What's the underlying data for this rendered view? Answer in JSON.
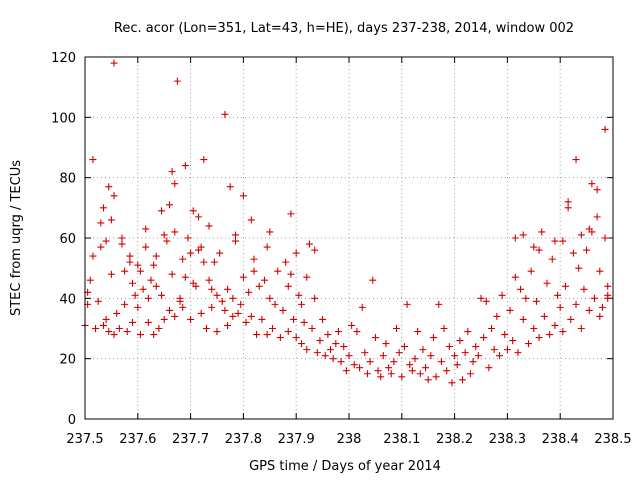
{
  "chart_data": {
    "type": "scatter",
    "title": "Rec. acor (Lon=351, Lat=43, h=HE), days 237-238, 2014, window 002",
    "xlabel": "GPS time / Days of year 2014",
    "ylabel": "STEC from uqrg / TECUs",
    "xlim": [
      237.5,
      238.5
    ],
    "ylim": [
      0,
      120
    ],
    "xticks": [
      "237.5",
      "237.6",
      "237.7",
      "237.8",
      "237.9",
      "238",
      "238.1",
      "238.2",
      "238.3",
      "238.4",
      "238.5"
    ],
    "yticks": [
      "0",
      "20",
      "40",
      "60",
      "80",
      "100",
      "120"
    ],
    "grid": true,
    "marker": "+",
    "marker_color": "#d40000",
    "points": [
      [
        237.5,
        31
      ],
      [
        237.505,
        38
      ],
      [
        237.505,
        42
      ],
      [
        237.51,
        46
      ],
      [
        237.515,
        54
      ],
      [
        237.515,
        86
      ],
      [
        237.52,
        30
      ],
      [
        237.525,
        39
      ],
      [
        237.53,
        57
      ],
      [
        237.53,
        65
      ],
      [
        237.535,
        70
      ],
      [
        237.535,
        31
      ],
      [
        237.54,
        59
      ],
      [
        237.54,
        33
      ],
      [
        237.545,
        77
      ],
      [
        237.545,
        29
      ],
      [
        237.55,
        48
      ],
      [
        237.55,
        66
      ],
      [
        237.555,
        74
      ],
      [
        237.555,
        118
      ],
      [
        237.555,
        28
      ],
      [
        237.56,
        35
      ],
      [
        237.565,
        30
      ],
      [
        237.57,
        60
      ],
      [
        237.57,
        58
      ],
      [
        237.575,
        38
      ],
      [
        237.575,
        49
      ],
      [
        237.58,
        29
      ],
      [
        237.585,
        54
      ],
      [
        237.585,
        52
      ],
      [
        237.59,
        45
      ],
      [
        237.59,
        32
      ],
      [
        237.595,
        41
      ],
      [
        237.6,
        51
      ],
      [
        237.6,
        37
      ],
      [
        237.605,
        49
      ],
      [
        237.605,
        28
      ],
      [
        237.61,
        43
      ],
      [
        237.615,
        57
      ],
      [
        237.615,
        63
      ],
      [
        237.62,
        40
      ],
      [
        237.62,
        32
      ],
      [
        237.625,
        46
      ],
      [
        237.63,
        28
      ],
      [
        237.63,
        51
      ],
      [
        237.635,
        54
      ],
      [
        237.635,
        44
      ],
      [
        237.64,
        30
      ],
      [
        237.645,
        69
      ],
      [
        237.645,
        41
      ],
      [
        237.65,
        61
      ],
      [
        237.65,
        33
      ],
      [
        237.655,
        59
      ],
      [
        237.66,
        36
      ],
      [
        237.66,
        71
      ],
      [
        237.665,
        48
      ],
      [
        237.665,
        82
      ],
      [
        237.67,
        78
      ],
      [
        237.67,
        62
      ],
      [
        237.67,
        34
      ],
      [
        237.675,
        112
      ],
      [
        237.68,
        40
      ],
      [
        237.68,
        39
      ],
      [
        237.685,
        53
      ],
      [
        237.685,
        37
      ],
      [
        237.69,
        84
      ],
      [
        237.69,
        47
      ],
      [
        237.695,
        60
      ],
      [
        237.7,
        55
      ],
      [
        237.7,
        33
      ],
      [
        237.705,
        69
      ],
      [
        237.705,
        45
      ],
      [
        237.71,
        44
      ],
      [
        237.715,
        67
      ],
      [
        237.715,
        56
      ],
      [
        237.72,
        57
      ],
      [
        237.72,
        35
      ],
      [
        237.725,
        52
      ],
      [
        237.725,
        86
      ],
      [
        237.73,
        30
      ],
      [
        237.735,
        64
      ],
      [
        237.735,
        46
      ],
      [
        237.74,
        43
      ],
      [
        237.74,
        37
      ],
      [
        237.745,
        52
      ],
      [
        237.75,
        41
      ],
      [
        237.75,
        29
      ],
      [
        237.755,
        55
      ],
      [
        237.76,
        39
      ],
      [
        237.765,
        101
      ],
      [
        237.765,
        36
      ],
      [
        237.77,
        43
      ],
      [
        237.77,
        31
      ],
      [
        237.775,
        77
      ],
      [
        237.78,
        34
      ],
      [
        237.78,
        40
      ],
      [
        237.785,
        61
      ],
      [
        237.785,
        59
      ],
      [
        237.79,
        35
      ],
      [
        237.795,
        38
      ],
      [
        237.8,
        47
      ],
      [
        237.8,
        74
      ],
      [
        237.805,
        32
      ],
      [
        237.81,
        42
      ],
      [
        237.815,
        66
      ],
      [
        237.815,
        34
      ],
      [
        237.82,
        53
      ],
      [
        237.82,
        49
      ],
      [
        237.825,
        28
      ],
      [
        237.83,
        44
      ],
      [
        237.835,
        33
      ],
      [
        237.84,
        46
      ],
      [
        237.845,
        57
      ],
      [
        237.845,
        28
      ],
      [
        237.85,
        62
      ],
      [
        237.85,
        40
      ],
      [
        237.855,
        30
      ],
      [
        237.86,
        38
      ],
      [
        237.865,
        49
      ],
      [
        237.87,
        27
      ],
      [
        237.875,
        36
      ],
      [
        237.88,
        52
      ],
      [
        237.885,
        29
      ],
      [
        237.885,
        44
      ],
      [
        237.89,
        68
      ],
      [
        237.89,
        48
      ],
      [
        237.895,
        33
      ],
      [
        237.9,
        27
      ],
      [
        237.9,
        55
      ],
      [
        237.905,
        41
      ],
      [
        237.91,
        38
      ],
      [
        237.91,
        25
      ],
      [
        237.915,
        32
      ],
      [
        237.92,
        47
      ],
      [
        237.92,
        23
      ],
      [
        237.925,
        58
      ],
      [
        237.93,
        30
      ],
      [
        237.935,
        56
      ],
      [
        237.935,
        40
      ],
      [
        237.94,
        22
      ],
      [
        237.945,
        26
      ],
      [
        237.95,
        33
      ],
      [
        237.955,
        21
      ],
      [
        237.96,
        28
      ],
      [
        237.965,
        23
      ],
      [
        237.97,
        20
      ],
      [
        237.975,
        25
      ],
      [
        237.98,
        29
      ],
      [
        237.985,
        19
      ],
      [
        237.99,
        24
      ],
      [
        237.995,
        16
      ],
      [
        238.0,
        21
      ],
      [
        238.005,
        31
      ],
      [
        238.01,
        18
      ],
      [
        238.015,
        29
      ],
      [
        238.02,
        17
      ],
      [
        238.025,
        37
      ],
      [
        238.03,
        22
      ],
      [
        238.035,
        15
      ],
      [
        238.04,
        19
      ],
      [
        238.045,
        46
      ],
      [
        238.05,
        27
      ],
      [
        238.055,
        16
      ],
      [
        238.06,
        14
      ],
      [
        238.065,
        21
      ],
      [
        238.07,
        25
      ],
      [
        238.075,
        17
      ],
      [
        238.08,
        15
      ],
      [
        238.085,
        19
      ],
      [
        238.09,
        30
      ],
      [
        238.095,
        22
      ],
      [
        238.1,
        14
      ],
      [
        238.105,
        24
      ],
      [
        238.11,
        38
      ],
      [
        238.115,
        18
      ],
      [
        238.12,
        16
      ],
      [
        238.125,
        20
      ],
      [
        238.13,
        29
      ],
      [
        238.135,
        15
      ],
      [
        238.14,
        23
      ],
      [
        238.145,
        17
      ],
      [
        238.15,
        13
      ],
      [
        238.155,
        21
      ],
      [
        238.16,
        27
      ],
      [
        238.165,
        14
      ],
      [
        238.17,
        38
      ],
      [
        238.175,
        19
      ],
      [
        238.18,
        30
      ],
      [
        238.185,
        16
      ],
      [
        238.19,
        24
      ],
      [
        238.195,
        12
      ],
      [
        238.2,
        21
      ],
      [
        238.205,
        18
      ],
      [
        238.21,
        26
      ],
      [
        238.215,
        13
      ],
      [
        238.22,
        22
      ],
      [
        238.225,
        29
      ],
      [
        238.23,
        15
      ],
      [
        238.235,
        19
      ],
      [
        238.24,
        24
      ],
      [
        238.245,
        21
      ],
      [
        238.25,
        40
      ],
      [
        238.255,
        27
      ],
      [
        238.26,
        39
      ],
      [
        238.265,
        17
      ],
      [
        238.27,
        30
      ],
      [
        238.275,
        23
      ],
      [
        238.28,
        34
      ],
      [
        238.285,
        21
      ],
      [
        238.29,
        41
      ],
      [
        238.295,
        28
      ],
      [
        238.3,
        23
      ],
      [
        238.305,
        36
      ],
      [
        238.31,
        26
      ],
      [
        238.315,
        47
      ],
      [
        238.315,
        60
      ],
      [
        238.32,
        22
      ],
      [
        238.325,
        43
      ],
      [
        238.33,
        61
      ],
      [
        238.33,
        33
      ],
      [
        238.335,
        40
      ],
      [
        238.34,
        25
      ],
      [
        238.345,
        49
      ],
      [
        238.35,
        57
      ],
      [
        238.35,
        30
      ],
      [
        238.355,
        39
      ],
      [
        238.36,
        56
      ],
      [
        238.36,
        27
      ],
      [
        238.365,
        62
      ],
      [
        238.37,
        34
      ],
      [
        238.375,
        45
      ],
      [
        238.38,
        28
      ],
      [
        238.385,
        53
      ],
      [
        238.39,
        59
      ],
      [
        238.39,
        31
      ],
      [
        238.395,
        41
      ],
      [
        238.4,
        37
      ],
      [
        238.405,
        59
      ],
      [
        238.405,
        29
      ],
      [
        238.41,
        44
      ],
      [
        238.415,
        70
      ],
      [
        238.415,
        72
      ],
      [
        238.42,
        33
      ],
      [
        238.425,
        55
      ],
      [
        238.43,
        86
      ],
      [
        238.43,
        38
      ],
      [
        238.435,
        50
      ],
      [
        238.44,
        61
      ],
      [
        238.44,
        30
      ],
      [
        238.445,
        43
      ],
      [
        238.45,
        56
      ],
      [
        238.455,
        63
      ],
      [
        238.455,
        36
      ],
      [
        238.46,
        78
      ],
      [
        238.46,
        62
      ],
      [
        238.465,
        40
      ],
      [
        238.47,
        76
      ],
      [
        238.47,
        67
      ],
      [
        238.475,
        49
      ],
      [
        238.475,
        34
      ],
      [
        238.48,
        37
      ],
      [
        238.485,
        96
      ],
      [
        238.485,
        60
      ],
      [
        238.49,
        44
      ],
      [
        238.49,
        41
      ],
      [
        238.49,
        40
      ]
    ]
  }
}
